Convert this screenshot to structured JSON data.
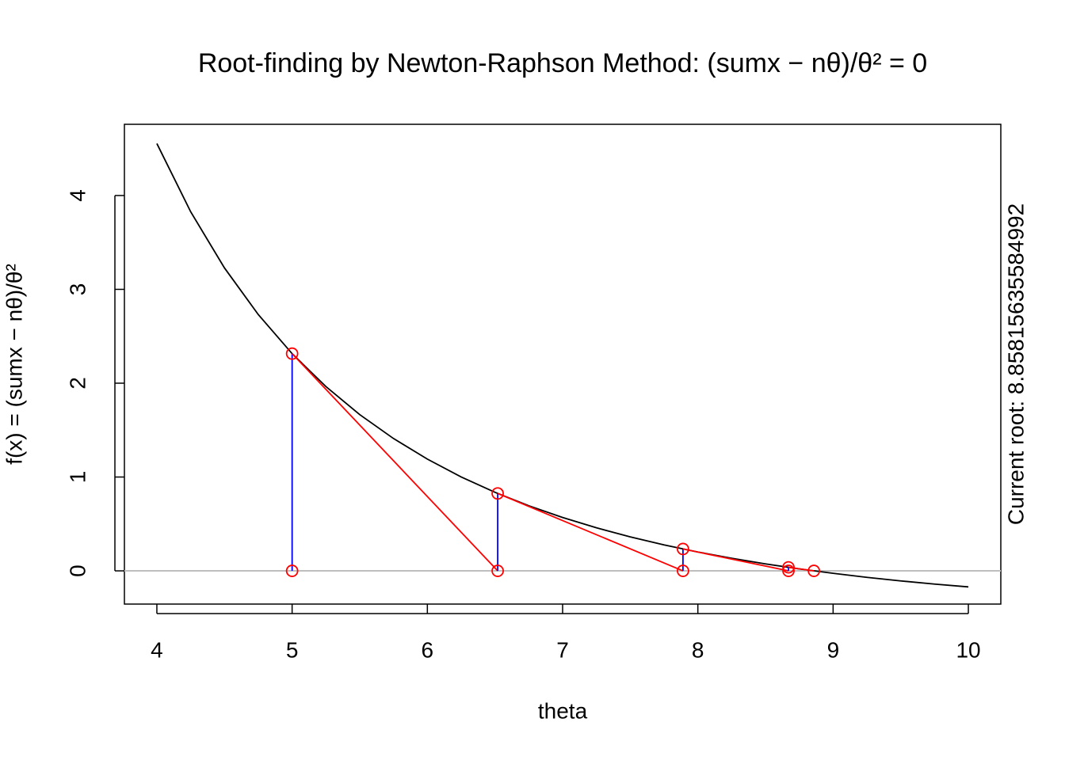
{
  "chart_data": {
    "type": "newton",
    "title": "Root-finding by Newton-Raphson Method: (sumx − nθ)/θ² = 0",
    "x_label": "theta",
    "y_label": "f(x) = (sumx − nθ)/θ²",
    "side_note": "Current root: 8.85815635584992",
    "xlim": [
      3.76,
      10.24
    ],
    "xticks": [
      4,
      5,
      6,
      7,
      8,
      9,
      10
    ],
    "ylim": [
      -0.354,
      4.759
    ],
    "yticks": [
      0,
      1,
      2,
      3,
      4
    ],
    "hline": 0,
    "hline_color": "#bebebe",
    "curve": {
      "color": "#000000",
      "x": [
        4,
        4.25,
        4.5,
        4.75,
        5,
        5.25,
        5.5,
        5.75,
        6,
        6.25,
        6.5,
        6.75,
        7,
        7.25,
        7.5,
        7.75,
        8,
        8.25,
        8.5,
        8.75,
        9,
        9.25,
        9.5,
        9.75,
        10
      ],
      "values": [
        4.554,
        3.827,
        3.228,
        2.731,
        2.315,
        1.964,
        1.665,
        1.41,
        1.191,
        1.001,
        0.837,
        0.694,
        0.569,
        0.459,
        0.362,
        0.277,
        0.201,
        0.134,
        0.074,
        0.021,
        -0.026,
        -0.069,
        -0.107,
        -0.141,
        -0.171
      ]
    },
    "iterates": {
      "point_color": "#ff0000",
      "tangent_color": "#ff0000",
      "drop_color": "#0000ff",
      "x": [
        5,
        6.52,
        7.89,
        8.67,
        8.858
      ],
      "values": [
        2.315,
        0.825,
        0.233,
        0.0375,
        null
      ]
    }
  }
}
